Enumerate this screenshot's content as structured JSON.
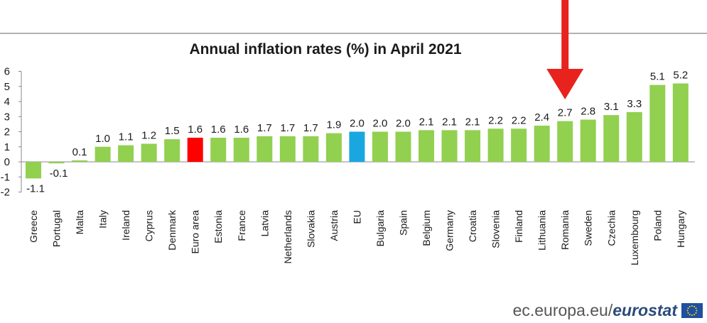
{
  "chart_data": {
    "type": "bar",
    "title": "Annual inflation rates (%) in April 2021",
    "xlabel": "",
    "ylabel": "",
    "ylim": [
      -2,
      6
    ],
    "yticks": [
      6,
      5,
      4,
      3,
      2,
      1,
      0,
      -1,
      -2
    ],
    "grid": false,
    "categories": [
      "Greece",
      "Portugal",
      "Malta",
      "Italy",
      "Ireland",
      "Cyprus",
      "Denmark",
      "Euro area",
      "Estonia",
      "France",
      "Latvia",
      "Netherlands",
      "Slovakia",
      "Austria",
      "EU",
      "Bulgaria",
      "Spain",
      "Belgium",
      "Germany",
      "Croatia",
      "Slovenia",
      "Finland",
      "Lithuania",
      "Romania",
      "Sweden",
      "Czechia",
      "Luxembourg",
      "Poland",
      "Hungary"
    ],
    "values": [
      -1.1,
      -0.1,
      0.1,
      1.0,
      1.1,
      1.2,
      1.5,
      1.6,
      1.6,
      1.6,
      1.7,
      1.7,
      1.7,
      1.9,
      2.0,
      2.0,
      2.0,
      2.1,
      2.1,
      2.1,
      2.2,
      2.2,
      2.4,
      2.7,
      2.8,
      3.1,
      3.3,
      5.1,
      5.2
    ],
    "value_labels": [
      "-1.1",
      "-0.1",
      "0.1",
      "1.0",
      "1.1",
      "1.2",
      "1.5",
      "1.6",
      "1.6",
      "1.6",
      "1.7",
      "1.7",
      "1.7",
      "1.9",
      "2.0",
      "2.0",
      "2.0",
      "2.1",
      "2.1",
      "2.1",
      "2.2",
      "2.2",
      "2.4",
      "2.7",
      "2.8",
      "3.1",
      "3.3",
      "5.1",
      "5.2"
    ],
    "colors": {
      "default": "#92d050",
      "Euro area": "#ff0000",
      "EU": "#1aa7e0",
      "axis": "#888888",
      "arrow": "#e8231d"
    },
    "highlight_arrow": "Romania"
  },
  "footer": {
    "domain": "ec.europa.eu/",
    "brand": "eurostat"
  },
  "icons": {
    "logo": "eu-flag-icon",
    "arrow": "red-down-arrow-icon"
  }
}
